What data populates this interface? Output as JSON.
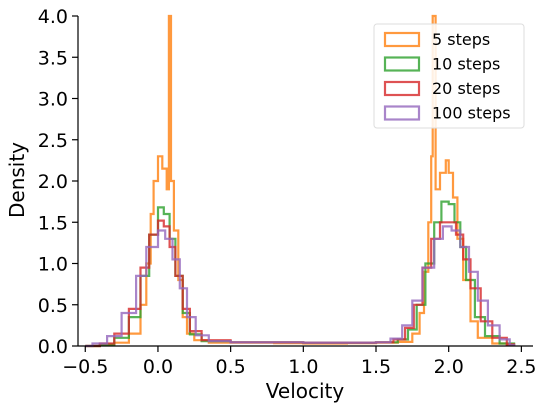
{
  "chart_data": {
    "type": "histogram (step)",
    "title": "",
    "xlabel": "Velocity",
    "ylabel": "Density",
    "xlim": [
      -0.55,
      2.58
    ],
    "ylim": [
      0.0,
      4.0
    ],
    "x_ticks": [
      -0.5,
      0.0,
      0.5,
      1.0,
      1.5,
      2.0,
      2.5
    ],
    "x_tick_labels": [
      "−0.5",
      "0.0",
      "0.5",
      "1.0",
      "1.5",
      "2.0",
      "2.5"
    ],
    "y_ticks": [
      0.0,
      0.5,
      1.0,
      1.5,
      2.0,
      2.5,
      3.0,
      3.5,
      4.0
    ],
    "y_tick_labels": [
      "0.0",
      "0.5",
      "1.0",
      "1.5",
      "2.0",
      "2.5",
      "3.0",
      "3.5",
      "4.0"
    ],
    "grid": false,
    "legend_position": "top-right",
    "series": [
      {
        "name": "5 steps",
        "color": "#ff7f0e",
        "points": [
          [
            -0.5,
            0
          ],
          [
            -0.4,
            0.01
          ],
          [
            -0.3,
            0.04
          ],
          [
            -0.2,
            0.15
          ],
          [
            -0.12,
            0.5
          ],
          [
            -0.08,
            1.0
          ],
          [
            -0.05,
            1.6
          ],
          [
            -0.03,
            2.0
          ],
          [
            0.0,
            2.3
          ],
          [
            0.03,
            2.15
          ],
          [
            0.06,
            1.9
          ],
          [
            0.075,
            4.0
          ],
          [
            0.09,
            2.0
          ],
          [
            0.11,
            1.4
          ],
          [
            0.14,
            0.8
          ],
          [
            0.17,
            0.35
          ],
          [
            0.2,
            0.15
          ],
          [
            0.25,
            0.07
          ],
          [
            0.35,
            0.04
          ],
          [
            0.5,
            0.04
          ],
          [
            0.8,
            0.035
          ],
          [
            1.0,
            0.03
          ],
          [
            1.3,
            0.035
          ],
          [
            1.5,
            0.04
          ],
          [
            1.65,
            0.05
          ],
          [
            1.75,
            0.15
          ],
          [
            1.8,
            0.4
          ],
          [
            1.83,
            0.9
          ],
          [
            1.86,
            1.5
          ],
          [
            1.88,
            2.3
          ],
          [
            1.89,
            4.0
          ],
          [
            1.91,
            1.9
          ],
          [
            1.94,
            2.1
          ],
          [
            1.98,
            2.25
          ],
          [
            2.0,
            2.1
          ],
          [
            2.03,
            1.8
          ],
          [
            2.06,
            1.3
          ],
          [
            2.1,
            0.8
          ],
          [
            2.15,
            0.3
          ],
          [
            2.2,
            0.1
          ],
          [
            2.3,
            0.03
          ],
          [
            2.4,
            0.0
          ]
        ]
      },
      {
        "name": "10 steps",
        "color": "#2ca02c",
        "points": [
          [
            -0.5,
            0
          ],
          [
            -0.4,
            0.02
          ],
          [
            -0.3,
            0.1
          ],
          [
            -0.2,
            0.35
          ],
          [
            -0.12,
            0.85
          ],
          [
            -0.06,
            1.35
          ],
          [
            0.0,
            1.68
          ],
          [
            0.04,
            1.6
          ],
          [
            0.08,
            1.3
          ],
          [
            0.12,
            0.85
          ],
          [
            0.17,
            0.4
          ],
          [
            0.22,
            0.14
          ],
          [
            0.3,
            0.06
          ],
          [
            0.5,
            0.045
          ],
          [
            1.0,
            0.04
          ],
          [
            1.5,
            0.045
          ],
          [
            1.65,
            0.08
          ],
          [
            1.72,
            0.2
          ],
          [
            1.78,
            0.5
          ],
          [
            1.84,
            1.0
          ],
          [
            1.9,
            1.5
          ],
          [
            1.95,
            1.75
          ],
          [
            2.0,
            1.72
          ],
          [
            2.04,
            1.5
          ],
          [
            2.08,
            1.2
          ],
          [
            2.12,
            0.8
          ],
          [
            2.18,
            0.35
          ],
          [
            2.25,
            0.12
          ],
          [
            2.35,
            0.03
          ],
          [
            2.45,
            0.0
          ]
        ]
      },
      {
        "name": "20 steps",
        "color": "#d62728",
        "points": [
          [
            -0.5,
            0
          ],
          [
            -0.4,
            0.03
          ],
          [
            -0.3,
            0.15
          ],
          [
            -0.2,
            0.45
          ],
          [
            -0.12,
            0.95
          ],
          [
            -0.06,
            1.35
          ],
          [
            0.0,
            1.52
          ],
          [
            0.04,
            1.45
          ],
          [
            0.08,
            1.2
          ],
          [
            0.12,
            0.85
          ],
          [
            0.17,
            0.45
          ],
          [
            0.22,
            0.18
          ],
          [
            0.3,
            0.07
          ],
          [
            0.5,
            0.045
          ],
          [
            1.0,
            0.04
          ],
          [
            1.5,
            0.045
          ],
          [
            1.62,
            0.08
          ],
          [
            1.7,
            0.22
          ],
          [
            1.76,
            0.5
          ],
          [
            1.82,
            0.95
          ],
          [
            1.88,
            1.3
          ],
          [
            1.94,
            1.5
          ],
          [
            2.0,
            1.5
          ],
          [
            2.05,
            1.35
          ],
          [
            2.1,
            1.05
          ],
          [
            2.15,
            0.7
          ],
          [
            2.22,
            0.3
          ],
          [
            2.3,
            0.1
          ],
          [
            2.4,
            0.02
          ],
          [
            2.45,
            0.0
          ]
        ]
      },
      {
        "name": "100 steps",
        "color": "#9467bd",
        "points": [
          [
            -0.5,
            0
          ],
          [
            -0.45,
            0.03
          ],
          [
            -0.35,
            0.12
          ],
          [
            -0.25,
            0.4
          ],
          [
            -0.15,
            0.85
          ],
          [
            -0.08,
            1.2
          ],
          [
            0.0,
            1.4
          ],
          [
            0.05,
            1.3
          ],
          [
            0.1,
            1.05
          ],
          [
            0.15,
            0.7
          ],
          [
            0.2,
            0.35
          ],
          [
            0.26,
            0.13
          ],
          [
            0.35,
            0.06
          ],
          [
            0.5,
            0.045
          ],
          [
            1.0,
            0.04
          ],
          [
            1.5,
            0.045
          ],
          [
            1.6,
            0.09
          ],
          [
            1.68,
            0.25
          ],
          [
            1.75,
            0.55
          ],
          [
            1.82,
            0.95
          ],
          [
            1.9,
            1.3
          ],
          [
            1.96,
            1.45
          ],
          [
            2.02,
            1.4
          ],
          [
            2.08,
            1.2
          ],
          [
            2.14,
            0.9
          ],
          [
            2.2,
            0.55
          ],
          [
            2.27,
            0.25
          ],
          [
            2.35,
            0.08
          ],
          [
            2.42,
            0.01
          ],
          [
            2.45,
            0.0
          ]
        ]
      }
    ]
  }
}
